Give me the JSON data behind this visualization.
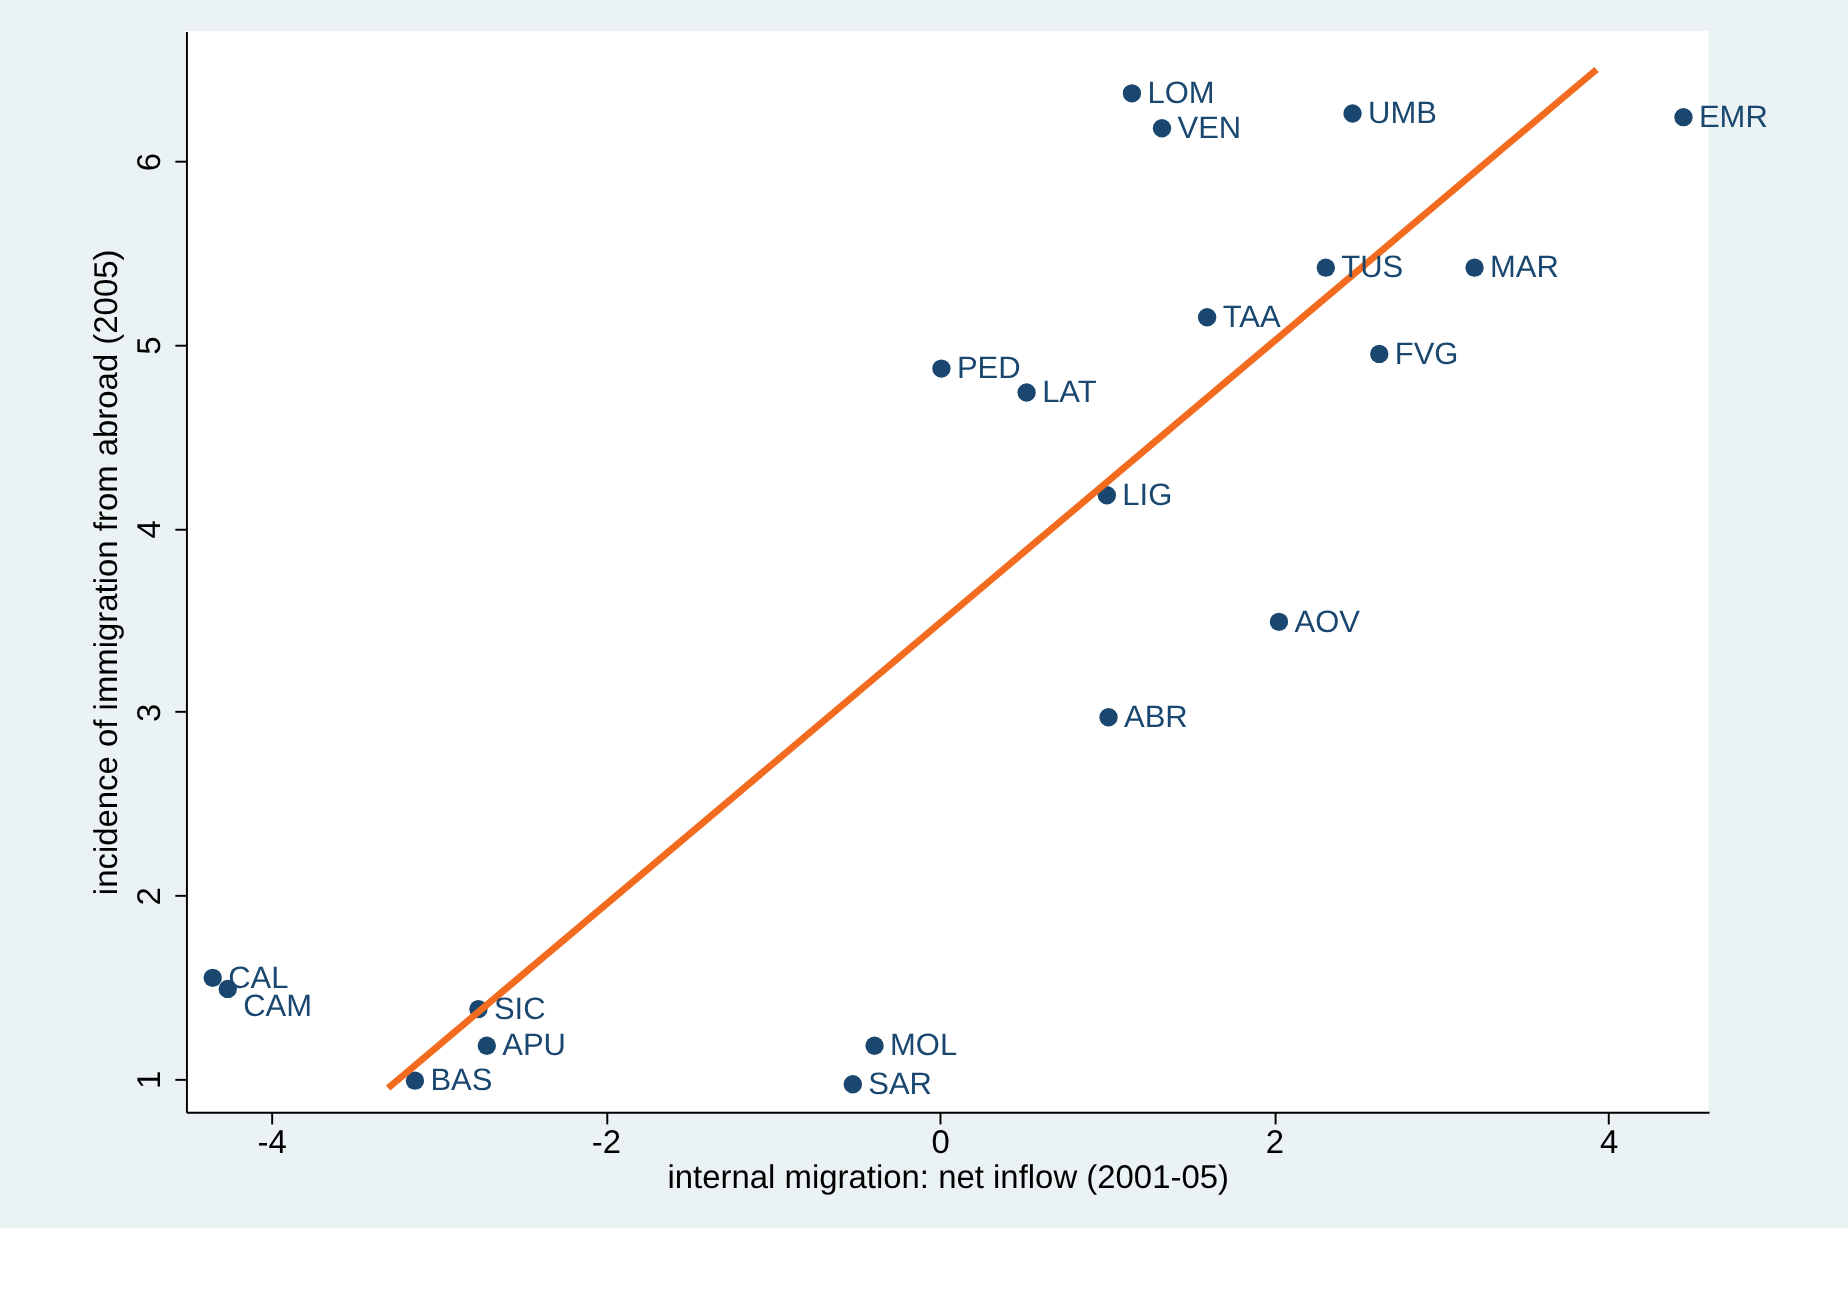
{
  "chart_data": {
    "type": "scatter",
    "xlabel": "internal migration: net inflow (2001-05)",
    "ylabel": "incidence of immigration from abroad (2005)",
    "xlim": [
      -4.51,
      4.6
    ],
    "ylim": [
      0.82,
      6.71
    ],
    "xticks": [
      -4,
      -2,
      0,
      2,
      4
    ],
    "yticks": [
      1,
      2,
      3,
      4,
      5,
      6
    ],
    "grid": false,
    "series": [
      {
        "color": "#1a476f",
        "marker": "circle",
        "x": [
          -4.35,
          -4.26,
          -2.76,
          -2.71,
          -3.14,
          -0.39,
          -0.52,
          1.01,
          2.03,
          1.0,
          0.01,
          0.52,
          1.6,
          2.63,
          2.31,
          3.2,
          1.15,
          1.33,
          2.47,
          4.45
        ],
        "values": [
          1.55,
          1.49,
          1.38,
          1.18,
          0.99,
          1.18,
          0.97,
          2.97,
          3.49,
          4.18,
          4.87,
          4.74,
          5.15,
          4.95,
          5.42,
          5.42,
          6.37,
          6.18,
          6.26,
          6.24
        ]
      },
      {
        "type": "line",
        "color": "#f26b1f",
        "marker": "none",
        "line_style": "solid",
        "x": [
          -3.3,
          3.93
        ],
        "values": [
          0.95,
          6.5
        ]
      }
    ],
    "annotations": [
      {
        "text": "CAL",
        "x": -4.35,
        "y": 1.55
      },
      {
        "text": "CAM",
        "x": -4.26,
        "y": 1.49
      },
      {
        "text": "SIC",
        "x": -2.76,
        "y": 1.38
      },
      {
        "text": "APU",
        "x": -2.71,
        "y": 1.18
      },
      {
        "text": "BAS",
        "x": -3.14,
        "y": 0.99
      },
      {
        "text": "MOL",
        "x": -0.39,
        "y": 1.18
      },
      {
        "text": "SAR",
        "x": -0.52,
        "y": 0.97
      },
      {
        "text": "ABR",
        "x": 1.01,
        "y": 2.97
      },
      {
        "text": "AOV",
        "x": 2.03,
        "y": 3.49
      },
      {
        "text": "LIG",
        "x": 1.0,
        "y": 4.18
      },
      {
        "text": "PED",
        "x": 0.01,
        "y": 4.87
      },
      {
        "text": "LAT",
        "x": 0.52,
        "y": 4.74
      },
      {
        "text": "TAA",
        "x": 1.6,
        "y": 5.15
      },
      {
        "text": "FVG",
        "x": 2.63,
        "y": 4.95
      },
      {
        "text": "TUS",
        "x": 2.31,
        "y": 5.42
      },
      {
        "text": "MAR",
        "x": 3.2,
        "y": 5.42
      },
      {
        "text": "LOM",
        "x": 1.15,
        "y": 6.37
      },
      {
        "text": "VEN",
        "x": 1.33,
        "y": 6.18
      },
      {
        "text": "UMB",
        "x": 2.47,
        "y": 6.26
      },
      {
        "text": "EMR",
        "x": 4.45,
        "y": 6.24
      }
    ]
  }
}
